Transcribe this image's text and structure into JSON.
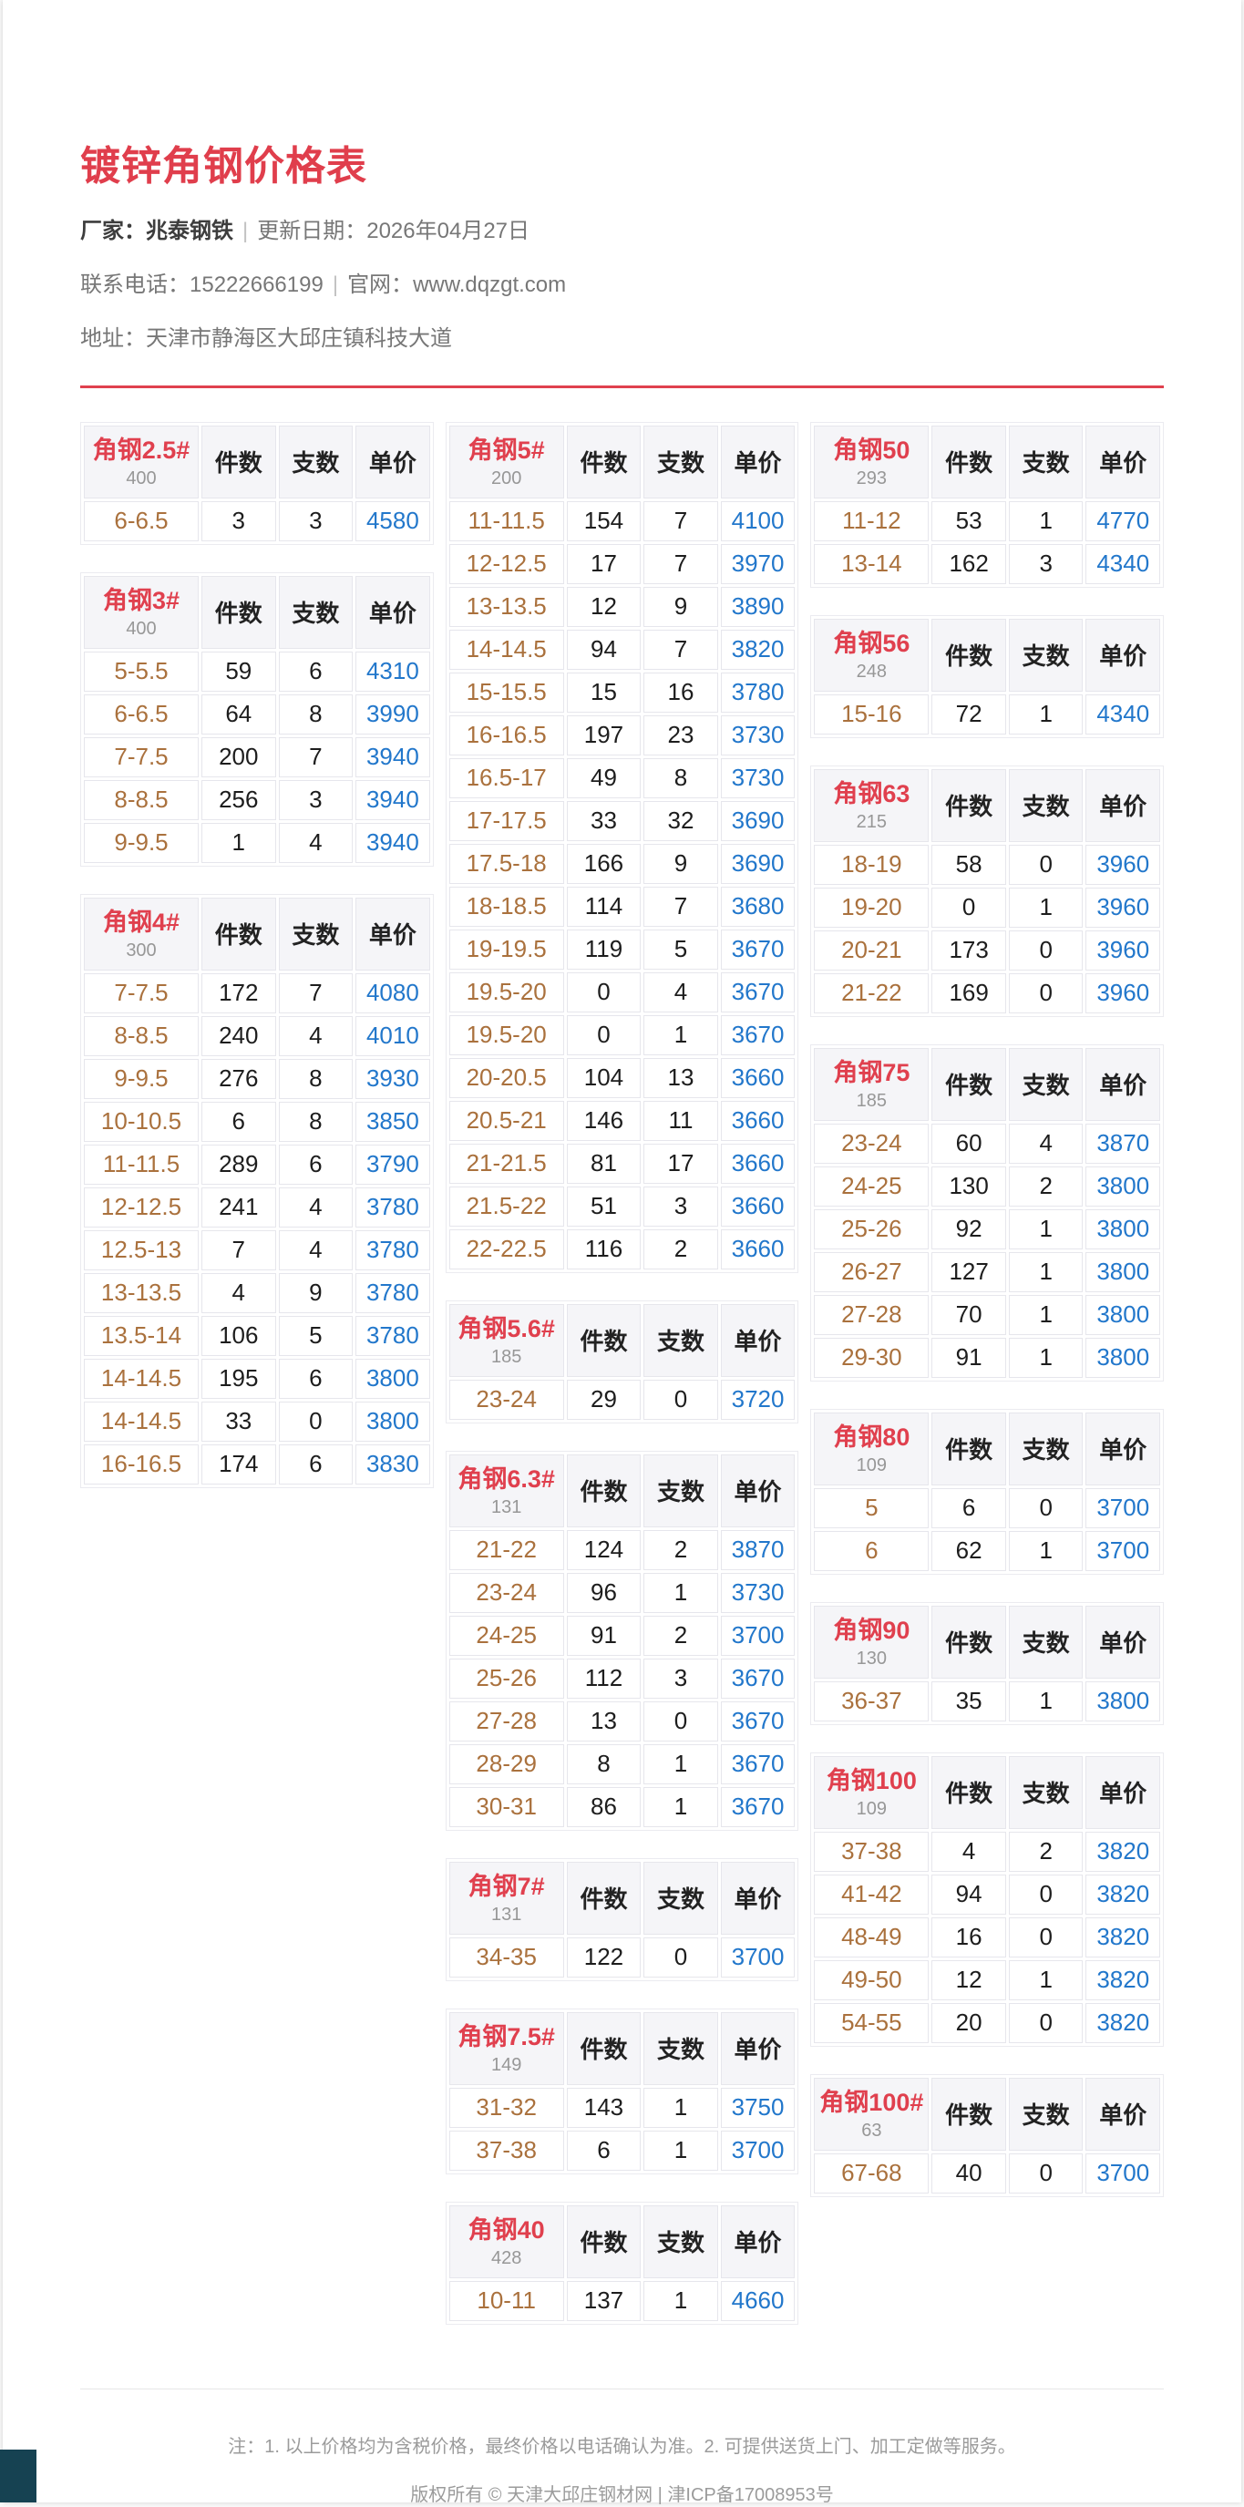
{
  "header": {
    "title": "镀锌角钢价格表",
    "factory_label": "厂家：",
    "factory_name": "兆泰钢铁",
    "separator": "|",
    "update_label": "更新日期：",
    "update_value": "2026年04月27日",
    "phone_label": "联系电话：",
    "phone_value": "15222666199",
    "site_label": "官网：",
    "site_value": "www.dqzgt.com",
    "address_label": "地址：",
    "address_value": "天津市静海区大邱庄镇科技大道"
  },
  "table_headers": {
    "pieces": "件数",
    "bundles": "支数",
    "price": "单价"
  },
  "colors": {
    "accent_red": "#e03e4c",
    "price_blue": "#2277cb",
    "range_brown": "#aa713d",
    "header_cell_bg": "#f5f5f8",
    "corner_widget": "#164252"
  },
  "columns": [
    [
      {
        "name": "角钢2.5#",
        "code": "400",
        "rows": [
          [
            "6-6.5",
            "3",
            "3",
            "4580"
          ]
        ]
      },
      {
        "name": "角钢3#",
        "code": "400",
        "rows": [
          [
            "5-5.5",
            "59",
            "6",
            "4310"
          ],
          [
            "6-6.5",
            "64",
            "8",
            "3990"
          ],
          [
            "7-7.5",
            "200",
            "7",
            "3940"
          ],
          [
            "8-8.5",
            "256",
            "3",
            "3940"
          ],
          [
            "9-9.5",
            "1",
            "4",
            "3940"
          ]
        ]
      },
      {
        "name": "角钢4#",
        "code": "300",
        "rows": [
          [
            "7-7.5",
            "172",
            "7",
            "4080"
          ],
          [
            "8-8.5",
            "240",
            "4",
            "4010"
          ],
          [
            "9-9.5",
            "276",
            "8",
            "3930"
          ],
          [
            "10-10.5",
            "6",
            "8",
            "3850"
          ],
          [
            "11-11.5",
            "289",
            "6",
            "3790"
          ],
          [
            "12-12.5",
            "241",
            "4",
            "3780"
          ],
          [
            "12.5-13",
            "7",
            "4",
            "3780"
          ],
          [
            "13-13.5",
            "4",
            "9",
            "3780"
          ],
          [
            "13.5-14",
            "106",
            "5",
            "3780"
          ],
          [
            "14-14.5",
            "195",
            "6",
            "3800"
          ],
          [
            "14-14.5",
            "33",
            "0",
            "3800"
          ],
          [
            "16-16.5",
            "174",
            "6",
            "3830"
          ]
        ]
      }
    ],
    [
      {
        "name": "角钢5#",
        "code": "200",
        "rows": [
          [
            "11-11.5",
            "154",
            "7",
            "4100"
          ],
          [
            "12-12.5",
            "17",
            "7",
            "3970"
          ],
          [
            "13-13.5",
            "12",
            "9",
            "3890"
          ],
          [
            "14-14.5",
            "94",
            "7",
            "3820"
          ],
          [
            "15-15.5",
            "15",
            "16",
            "3780"
          ],
          [
            "16-16.5",
            "197",
            "23",
            "3730"
          ],
          [
            "16.5-17",
            "49",
            "8",
            "3730"
          ],
          [
            "17-17.5",
            "33",
            "32",
            "3690"
          ],
          [
            "17.5-18",
            "166",
            "9",
            "3690"
          ],
          [
            "18-18.5",
            "114",
            "7",
            "3680"
          ],
          [
            "19-19.5",
            "119",
            "5",
            "3670"
          ],
          [
            "19.5-20",
            "0",
            "4",
            "3670"
          ],
          [
            "19.5-20",
            "0",
            "1",
            "3670"
          ],
          [
            "20-20.5",
            "104",
            "13",
            "3660"
          ],
          [
            "20.5-21",
            "146",
            "11",
            "3660"
          ],
          [
            "21-21.5",
            "81",
            "17",
            "3660"
          ],
          [
            "21.5-22",
            "51",
            "3",
            "3660"
          ],
          [
            "22-22.5",
            "116",
            "2",
            "3660"
          ]
        ]
      },
      {
        "name": "角钢5.6#",
        "code": "185",
        "rows": [
          [
            "23-24",
            "29",
            "0",
            "3720"
          ]
        ]
      },
      {
        "name": "角钢6.3#",
        "code": "131",
        "rows": [
          [
            "21-22",
            "124",
            "2",
            "3870"
          ],
          [
            "23-24",
            "96",
            "1",
            "3730"
          ],
          [
            "24-25",
            "91",
            "2",
            "3700"
          ],
          [
            "25-26",
            "112",
            "3",
            "3670"
          ],
          [
            "27-28",
            "13",
            "0",
            "3670"
          ],
          [
            "28-29",
            "8",
            "1",
            "3670"
          ],
          [
            "30-31",
            "86",
            "1",
            "3670"
          ]
        ]
      },
      {
        "name": "角钢7#",
        "code": "131",
        "rows": [
          [
            "34-35",
            "122",
            "0",
            "3700"
          ]
        ]
      },
      {
        "name": "角钢7.5#",
        "code": "149",
        "rows": [
          [
            "31-32",
            "143",
            "1",
            "3750"
          ],
          [
            "37-38",
            "6",
            "1",
            "3700"
          ]
        ]
      },
      {
        "name": "角钢40",
        "code": "428",
        "rows": [
          [
            "10-11",
            "137",
            "1",
            "4660"
          ]
        ]
      }
    ],
    [
      {
        "name": "角钢50",
        "code": "293",
        "rows": [
          [
            "11-12",
            "53",
            "1",
            "4770"
          ],
          [
            "13-14",
            "162",
            "3",
            "4340"
          ]
        ]
      },
      {
        "name": "角钢56",
        "code": "248",
        "rows": [
          [
            "15-16",
            "72",
            "1",
            "4340"
          ]
        ]
      },
      {
        "name": "角钢63",
        "code": "215",
        "rows": [
          [
            "18-19",
            "58",
            "0",
            "3960"
          ],
          [
            "19-20",
            "0",
            "1",
            "3960"
          ],
          [
            "20-21",
            "173",
            "0",
            "3960"
          ],
          [
            "21-22",
            "169",
            "0",
            "3960"
          ]
        ]
      },
      {
        "name": "角钢75",
        "code": "185",
        "rows": [
          [
            "23-24",
            "60",
            "4",
            "3870"
          ],
          [
            "24-25",
            "130",
            "2",
            "3800"
          ],
          [
            "25-26",
            "92",
            "1",
            "3800"
          ],
          [
            "26-27",
            "127",
            "1",
            "3800"
          ],
          [
            "27-28",
            "70",
            "1",
            "3800"
          ],
          [
            "29-30",
            "91",
            "1",
            "3800"
          ]
        ]
      },
      {
        "name": "角钢80",
        "code": "109",
        "rows": [
          [
            "5",
            "6",
            "0",
            "3700"
          ],
          [
            "6",
            "62",
            "1",
            "3700"
          ]
        ]
      },
      {
        "name": "角钢90",
        "code": "130",
        "rows": [
          [
            "36-37",
            "35",
            "1",
            "3800"
          ]
        ]
      },
      {
        "name": "角钢100",
        "code": "109",
        "rows": [
          [
            "37-38",
            "4",
            "2",
            "3820"
          ],
          [
            "41-42",
            "94",
            "0",
            "3820"
          ],
          [
            "48-49",
            "16",
            "0",
            "3820"
          ],
          [
            "49-50",
            "12",
            "1",
            "3820"
          ],
          [
            "54-55",
            "20",
            "0",
            "3820"
          ]
        ]
      },
      {
        "name": "角钢100#",
        "code": "63",
        "rows": [
          [
            "67-68",
            "40",
            "0",
            "3700"
          ]
        ]
      }
    ]
  ],
  "footer": {
    "note": "注：1. 以上价格均为含税价格，最终价格以电话确认为准。2. 可提供送货上门、加工定做等服务。",
    "copyright": "版权所有 © 天津大邱庄钢材网 | 津ICP备17008953号"
  }
}
